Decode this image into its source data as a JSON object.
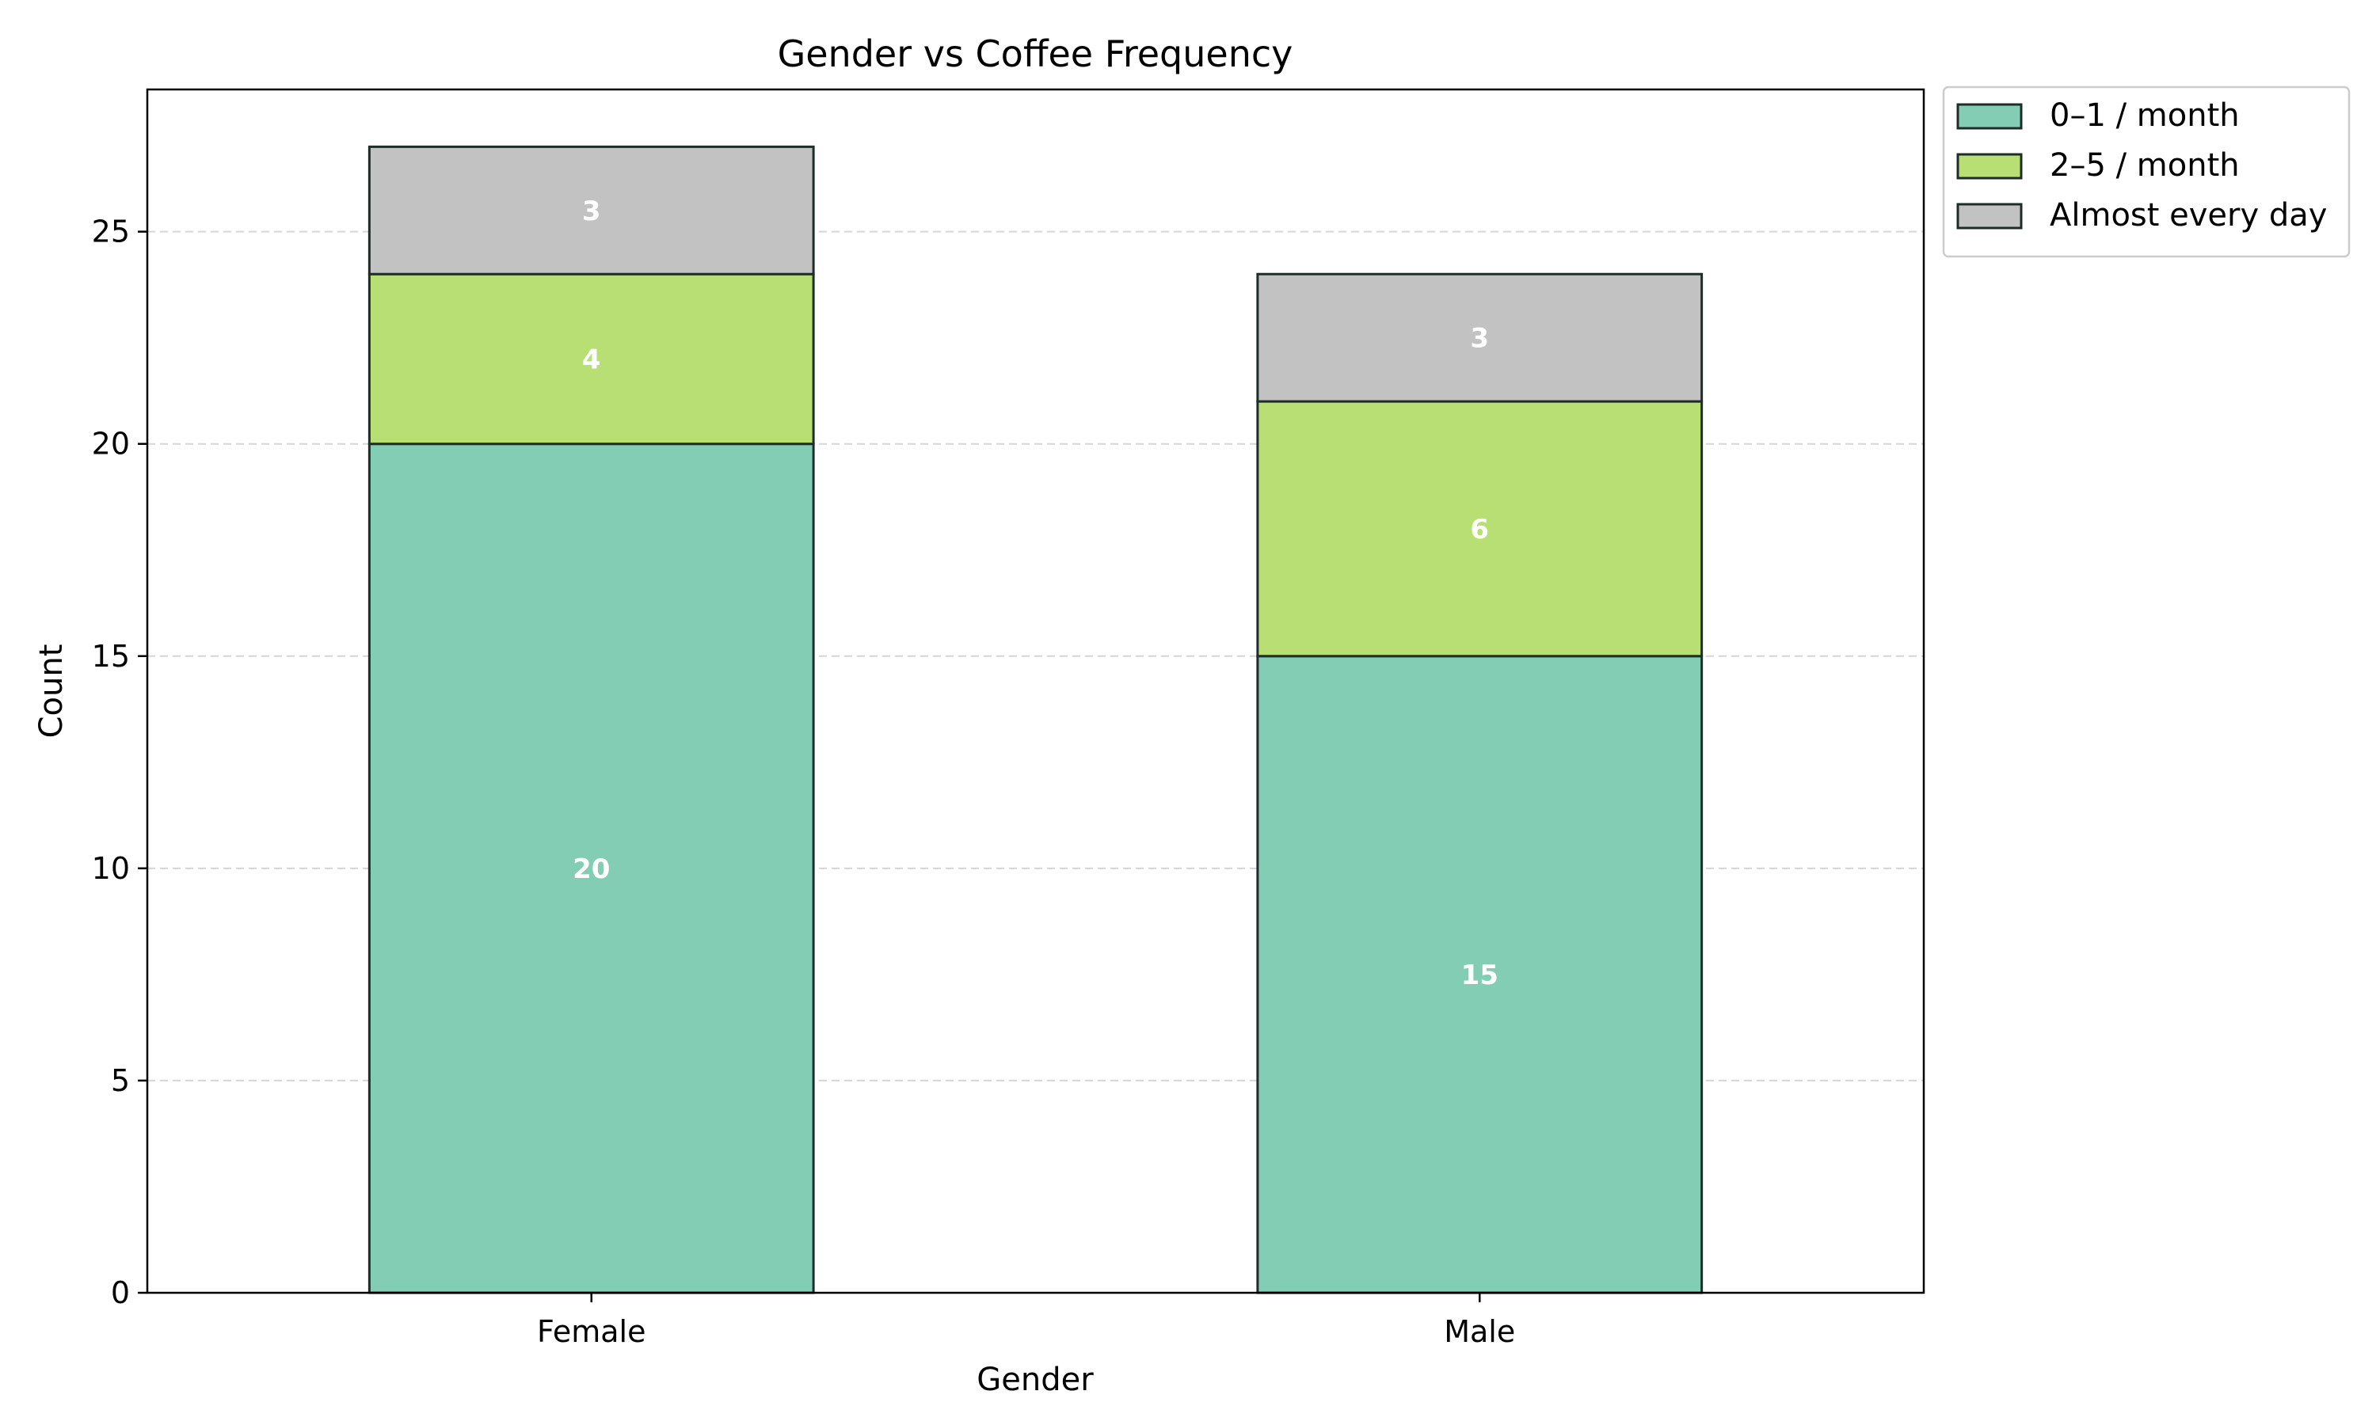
{
  "chart_data": {
    "type": "bar",
    "stacked": true,
    "title": "Gender vs Coffee Frequency",
    "xlabel": "Gender",
    "ylabel": "Count",
    "categories": [
      "Female",
      "Male"
    ],
    "series": [
      {
        "name": "0–1 / month",
        "values": [
          20,
          15
        ],
        "color": "#84cdb5"
      },
      {
        "name": "2–5 / month",
        "values": [
          4,
          6
        ],
        "color": "#b8df74"
      },
      {
        "name": "Almost every day",
        "values": [
          3,
          3
        ],
        "color": "#c2c2c2"
      }
    ],
    "ylim": [
      0,
      28.35
    ],
    "yticks": [
      0,
      5,
      10,
      15,
      20,
      25
    ],
    "grid": true,
    "legend_position": "outside-top-right",
    "data_label_color": "#ffffff"
  }
}
